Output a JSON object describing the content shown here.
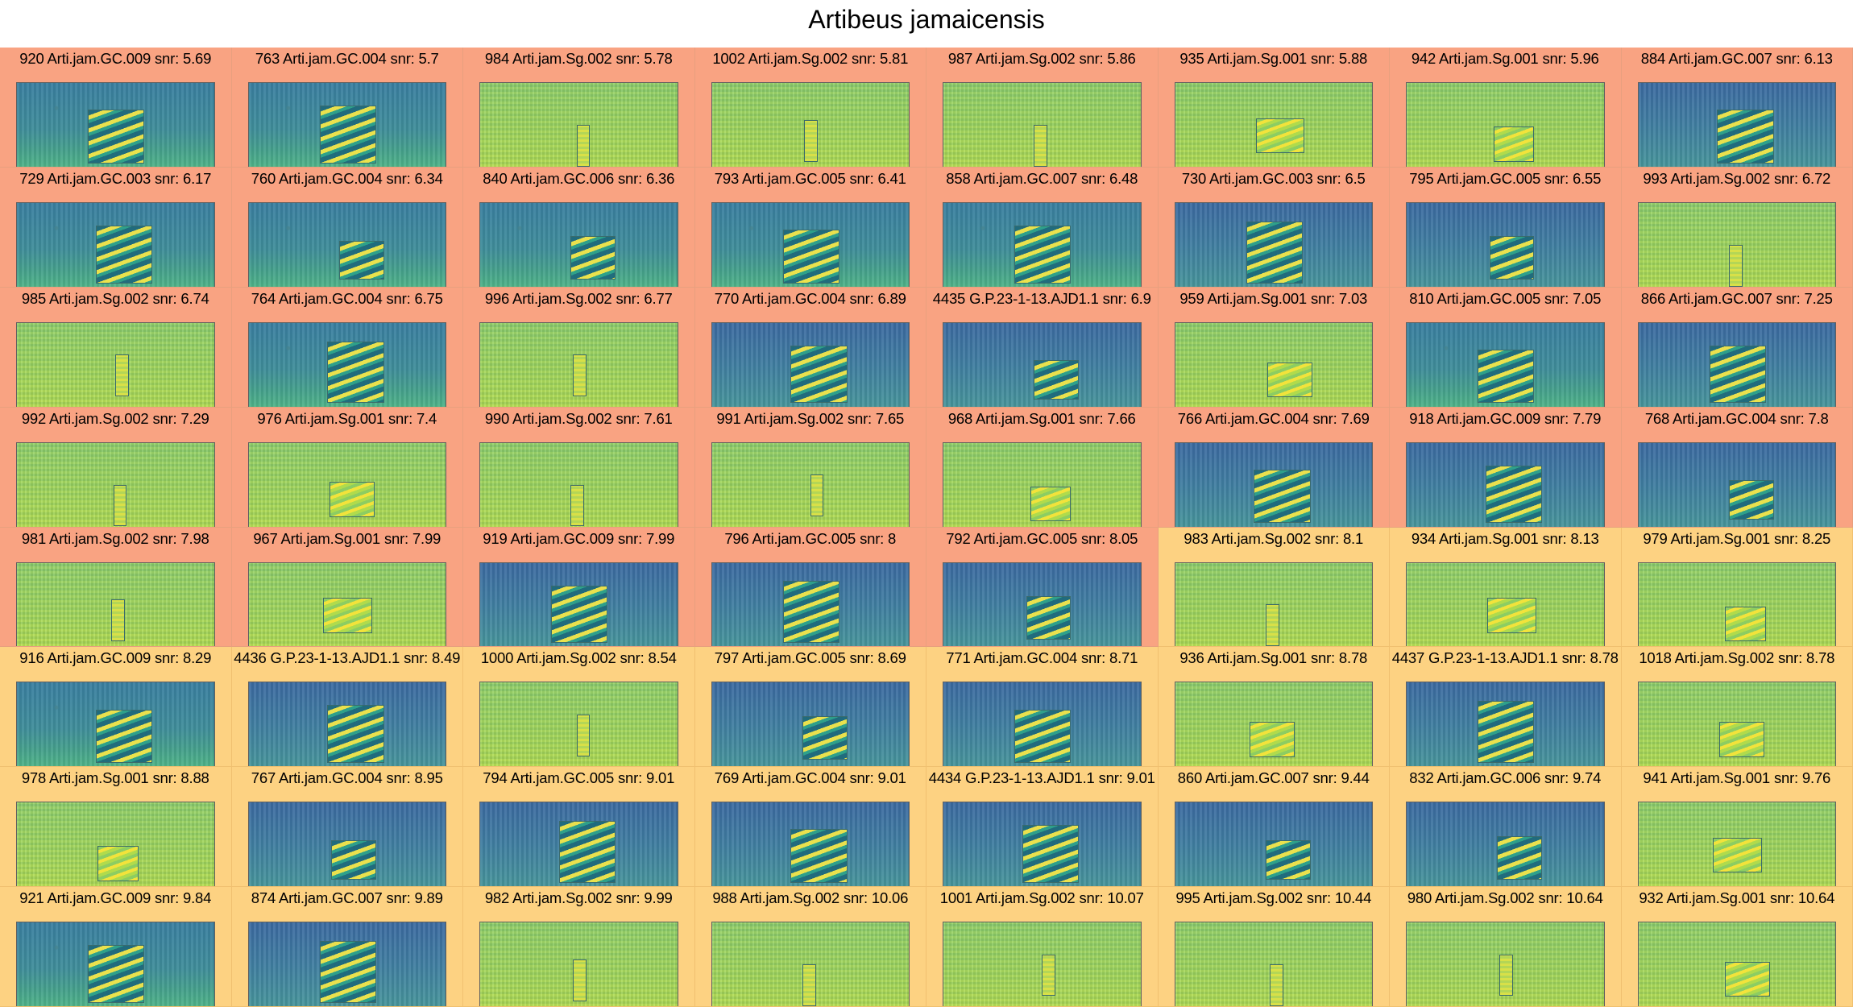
{
  "title": "Artibeus jamaicensis",
  "colors": {
    "positive": "#f9a382",
    "other": "#fdd282"
  },
  "cells": [
    {
      "label": "920 Arti.jam.GC.009 snr: 5.69",
      "tone": "pink",
      "bg": "low",
      "call": "low"
    },
    {
      "label": "763 Arti.jam.GC.004 snr: 5.7",
      "tone": "pink",
      "bg": "low",
      "call": "low"
    },
    {
      "label": "984 Arti.jam.Sg.002 snr: 5.78",
      "tone": "pink",
      "bg": "high",
      "call": "thin"
    },
    {
      "label": "1002 Arti.jam.Sg.002 snr: 5.81",
      "tone": "pink",
      "bg": "high",
      "call": "thin"
    },
    {
      "label": "987 Arti.jam.Sg.002 snr: 5.86",
      "tone": "pink",
      "bg": "high",
      "call": "thin"
    },
    {
      "label": "935 Arti.jam.Sg.001 snr: 5.88",
      "tone": "pink",
      "bg": "high",
      "call": "high"
    },
    {
      "label": "942 Arti.jam.Sg.001 snr: 5.96",
      "tone": "pink",
      "bg": "high",
      "call": "high"
    },
    {
      "label": "884 Arti.jam.GC.007 snr: 6.13",
      "tone": "pink",
      "bg": "mid",
      "call": "low"
    },
    {
      "label": "729 Arti.jam.GC.003 snr: 6.17",
      "tone": "pink",
      "bg": "low",
      "call": "low"
    },
    {
      "label": "760 Arti.jam.GC.004 snr: 6.34",
      "tone": "pink",
      "bg": "low",
      "call": "low"
    },
    {
      "label": "840 Arti.jam.GC.006 snr: 6.36",
      "tone": "pink",
      "bg": "low",
      "call": "low"
    },
    {
      "label": "793 Arti.jam.GC.005 snr: 6.41",
      "tone": "pink",
      "bg": "low",
      "call": "low"
    },
    {
      "label": "858 Arti.jam.GC.007 snr: 6.48",
      "tone": "pink",
      "bg": "low",
      "call": "low"
    },
    {
      "label": "730 Arti.jam.GC.003 snr: 6.5",
      "tone": "pink",
      "bg": "mid",
      "call": "low"
    },
    {
      "label": "795 Arti.jam.GC.005 snr: 6.55",
      "tone": "pink",
      "bg": "mid",
      "call": "low"
    },
    {
      "label": "993 Arti.jam.Sg.002 snr: 6.72",
      "tone": "pink",
      "bg": "high",
      "call": "thin"
    },
    {
      "label": "985 Arti.jam.Sg.002 snr: 6.74",
      "tone": "pink",
      "bg": "high",
      "call": "thin"
    },
    {
      "label": "764 Arti.jam.GC.004 snr: 6.75",
      "tone": "pink",
      "bg": "low",
      "call": "low"
    },
    {
      "label": "996 Arti.jam.Sg.002 snr: 6.77",
      "tone": "pink",
      "bg": "high",
      "call": "thin"
    },
    {
      "label": "770 Arti.jam.GC.004 snr: 6.89",
      "tone": "pink",
      "bg": "mid",
      "call": "low"
    },
    {
      "label": "4435 G.P.23-1-13.AJD1.1 snr: 6.9",
      "tone": "pink",
      "bg": "mid",
      "call": "low"
    },
    {
      "label": "959 Arti.jam.Sg.001 snr: 7.03",
      "tone": "pink",
      "bg": "high",
      "call": "high"
    },
    {
      "label": "810 Arti.jam.GC.005 snr: 7.05",
      "tone": "pink",
      "bg": "low",
      "call": "low"
    },
    {
      "label": "866 Arti.jam.GC.007 snr: 7.25",
      "tone": "pink",
      "bg": "mid",
      "call": "low"
    },
    {
      "label": "992 Arti.jam.Sg.002 snr: 7.29",
      "tone": "pink",
      "bg": "high",
      "call": "thin"
    },
    {
      "label": "976 Arti.jam.Sg.001 snr: 7.4",
      "tone": "pink",
      "bg": "high",
      "call": "high"
    },
    {
      "label": "990 Arti.jam.Sg.002 snr: 7.61",
      "tone": "pink",
      "bg": "high",
      "call": "thin"
    },
    {
      "label": "991 Arti.jam.Sg.002 snr: 7.65",
      "tone": "pink",
      "bg": "high",
      "call": "thin"
    },
    {
      "label": "968 Arti.jam.Sg.001 snr: 7.66",
      "tone": "pink",
      "bg": "high",
      "call": "high"
    },
    {
      "label": "766 Arti.jam.GC.004 snr: 7.69",
      "tone": "pink",
      "bg": "mid",
      "call": "low"
    },
    {
      "label": "918 Arti.jam.GC.009 snr: 7.79",
      "tone": "pink",
      "bg": "mid",
      "call": "low"
    },
    {
      "label": "768 Arti.jam.GC.004 snr: 7.8",
      "tone": "pink",
      "bg": "mid",
      "call": "low"
    },
    {
      "label": "981 Arti.jam.Sg.002 snr: 7.98",
      "tone": "pink",
      "bg": "high",
      "call": "thin"
    },
    {
      "label": "967 Arti.jam.Sg.001 snr: 7.99",
      "tone": "pink",
      "bg": "high",
      "call": "high"
    },
    {
      "label": "919 Arti.jam.GC.009 snr: 7.99",
      "tone": "pink",
      "bg": "mid",
      "call": "low"
    },
    {
      "label": "796 Arti.jam.GC.005 snr: 8",
      "tone": "pink",
      "bg": "mid",
      "call": "low"
    },
    {
      "label": "792 Arti.jam.GC.005 snr: 8.05",
      "tone": "pink",
      "bg": "mid",
      "call": "low"
    },
    {
      "label": "983 Arti.jam.Sg.002 snr: 8.1",
      "tone": "yellow",
      "bg": "high",
      "call": "thin"
    },
    {
      "label": "934 Arti.jam.Sg.001 snr: 8.13",
      "tone": "yellow",
      "bg": "high",
      "call": "high"
    },
    {
      "label": "979 Arti.jam.Sg.001 snr: 8.25",
      "tone": "yellow",
      "bg": "high",
      "call": "high"
    },
    {
      "label": "916 Arti.jam.GC.009 snr: 8.29",
      "tone": "yellow",
      "bg": "low",
      "call": "low"
    },
    {
      "label": "4436 G.P.23-1-13.AJD1.1 snr: 8.49",
      "tone": "yellow",
      "bg": "mid",
      "call": "low"
    },
    {
      "label": "1000 Arti.jam.Sg.002 snr: 8.54",
      "tone": "yellow",
      "bg": "high",
      "call": "thin"
    },
    {
      "label": "797 Arti.jam.GC.005 snr: 8.69",
      "tone": "yellow",
      "bg": "mid",
      "call": "low"
    },
    {
      "label": "771 Arti.jam.GC.004 snr: 8.71",
      "tone": "yellow",
      "bg": "mid",
      "call": "low"
    },
    {
      "label": "936 Arti.jam.Sg.001 snr: 8.78",
      "tone": "yellow",
      "bg": "high",
      "call": "high"
    },
    {
      "label": "4437 G.P.23-1-13.AJD1.1 snr: 8.78",
      "tone": "yellow",
      "bg": "mid",
      "call": "low"
    },
    {
      "label": "1018 Arti.jam.Sg.002 snr: 8.78",
      "tone": "yellow",
      "bg": "high",
      "call": "high"
    },
    {
      "label": "978 Arti.jam.Sg.001 snr: 8.88",
      "tone": "yellow",
      "bg": "high",
      "call": "high"
    },
    {
      "label": "767 Arti.jam.GC.004 snr: 8.95",
      "tone": "yellow",
      "bg": "mid",
      "call": "low"
    },
    {
      "label": "794 Arti.jam.GC.005 snr: 9.01",
      "tone": "yellow",
      "bg": "mid",
      "call": "low"
    },
    {
      "label": "769 Arti.jam.GC.004 snr: 9.01",
      "tone": "yellow",
      "bg": "mid",
      "call": "low"
    },
    {
      "label": "4434 G.P.23-1-13.AJD1.1 snr: 9.01",
      "tone": "yellow",
      "bg": "mid",
      "call": "low"
    },
    {
      "label": "860 Arti.jam.GC.007 snr: 9.44",
      "tone": "yellow",
      "bg": "mid",
      "call": "low"
    },
    {
      "label": "832 Arti.jam.GC.006 snr: 9.74",
      "tone": "yellow",
      "bg": "mid",
      "call": "low"
    },
    {
      "label": "941 Arti.jam.Sg.001 snr: 9.76",
      "tone": "yellow",
      "bg": "high",
      "call": "high"
    },
    {
      "label": "921 Arti.jam.GC.009 snr: 9.84",
      "tone": "yellow",
      "bg": "low",
      "call": "low"
    },
    {
      "label": "874 Arti.jam.GC.007 snr: 9.89",
      "tone": "yellow",
      "bg": "mid",
      "call": "low"
    },
    {
      "label": "982 Arti.jam.Sg.002 snr: 9.99",
      "tone": "yellow",
      "bg": "high",
      "call": "thin"
    },
    {
      "label": "988 Arti.jam.Sg.002 snr: 10.06",
      "tone": "yellow",
      "bg": "high",
      "call": "thin"
    },
    {
      "label": "1001 Arti.jam.Sg.002 snr: 10.07",
      "tone": "yellow",
      "bg": "high",
      "call": "thin"
    },
    {
      "label": "995 Arti.jam.Sg.002 snr: 10.44",
      "tone": "yellow",
      "bg": "high",
      "call": "thin"
    },
    {
      "label": "980 Arti.jam.Sg.002 snr: 10.64",
      "tone": "yellow",
      "bg": "high",
      "call": "thin"
    },
    {
      "label": "932 Arti.jam.Sg.001 snr: 10.64",
      "tone": "yellow",
      "bg": "high",
      "call": "high"
    }
  ]
}
